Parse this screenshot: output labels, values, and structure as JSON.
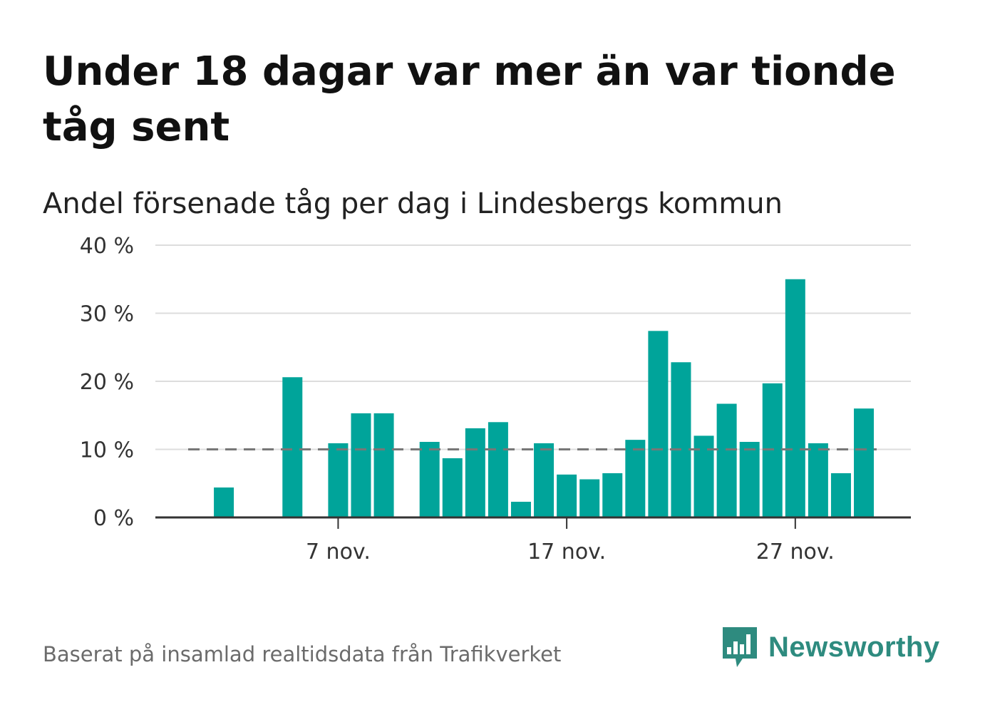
{
  "title": "Under 18 dagar var mer än var tionde tåg sent",
  "subtitle": "Andel försenade tåg per dag i Lindesbergs kommun",
  "source": "Baserat på insamlad realtidsdata från Trafikverket",
  "brand": {
    "name": "Newsworthy",
    "logo_icon": "newsworthy-bar-chart-bubble-icon",
    "color": "#2e8b7f"
  },
  "colors": {
    "bar": "#00a49a",
    "grid": "#dddddd",
    "reference_line": "#777777",
    "axis": "#333333"
  },
  "chart_data": {
    "type": "bar",
    "ylim": [
      0,
      40
    ],
    "y_ticks": [
      0,
      10,
      20,
      30,
      40
    ],
    "y_tick_labels": [
      "0 %",
      "10 %",
      "20 %",
      "30 %",
      "40 %"
    ],
    "x_tick_labels": [
      {
        "day": 7,
        "label": "7 nov."
      },
      {
        "day": 17,
        "label": "17 nov."
      },
      {
        "day": 27,
        "label": "27 nov."
      }
    ],
    "reference_line": 10,
    "grid": true,
    "days": [
      1,
      2,
      3,
      4,
      5,
      6,
      7,
      8,
      9,
      10,
      11,
      12,
      13,
      14,
      15,
      16,
      17,
      18,
      19,
      20,
      21,
      22,
      23,
      24,
      25,
      26,
      27,
      28,
      29,
      30
    ],
    "values": [
      0,
      4.4,
      0,
      0,
      20.6,
      0,
      10.9,
      15.3,
      15.3,
      0,
      11.1,
      8.7,
      13.1,
      14.0,
      2.3,
      10.9,
      6.3,
      5.6,
      6.5,
      11.4,
      27.4,
      22.8,
      12.0,
      16.7,
      11.1,
      19.7,
      35.0,
      10.9,
      6.5,
      16.0
    ]
  }
}
